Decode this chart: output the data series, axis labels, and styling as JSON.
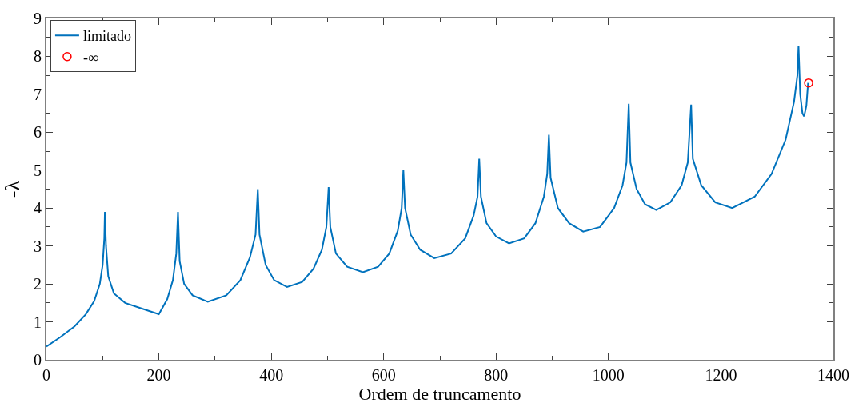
{
  "chart_data": {
    "type": "line",
    "xlabel": "Ordem de truncamento",
    "ylabel": "-λ",
    "xlim": [
      0,
      1400
    ],
    "xticks": [
      0,
      200,
      400,
      600,
      800,
      1000,
      1200,
      1400
    ],
    "ylim": [
      0,
      9
    ],
    "yticks": [
      0,
      1,
      2,
      3,
      4,
      5,
      6,
      7,
      8,
      9
    ],
    "legend": "top left",
    "series": [
      {
        "name": "limitado",
        "color": "#0072bd",
        "marker": "none",
        "line_style": "solid",
        "x": [
          0,
          25,
          50,
          70,
          85,
          95,
          100,
          103,
          104,
          106,
          110,
          120,
          140,
          170,
          200,
          215,
          225,
          231,
          234,
          237,
          245,
          260,
          287,
          320,
          345,
          362,
          372,
          376,
          379,
          390,
          405,
          428,
          455,
          475,
          490,
          498,
          502,
          505,
          515,
          535,
          563,
          590,
          610,
          625,
          632,
          635,
          638,
          648,
          665,
          690,
          720,
          745,
          760,
          767,
          770,
          773,
          783,
          800,
          823,
          850,
          870,
          885,
          891,
          894,
          897,
          910,
          930,
          955,
          985,
          1010,
          1025,
          1032,
          1036,
          1039,
          1050,
          1065,
          1085,
          1110,
          1130,
          1141,
          1147,
          1150,
          1165,
          1190,
          1220,
          1260,
          1290,
          1315,
          1330,
          1336,
          1338,
          1341,
          1345,
          1348,
          1352,
          1355
        ],
        "values": [
          0.35,
          0.6,
          0.88,
          1.2,
          1.55,
          2.0,
          2.5,
          3.2,
          3.9,
          3.0,
          2.2,
          1.75,
          1.5,
          1.35,
          1.2,
          1.6,
          2.1,
          2.8,
          3.9,
          2.6,
          2.0,
          1.7,
          1.53,
          1.7,
          2.1,
          2.7,
          3.3,
          4.5,
          3.3,
          2.5,
          2.1,
          1.92,
          2.05,
          2.4,
          2.9,
          3.5,
          4.55,
          3.5,
          2.8,
          2.45,
          2.31,
          2.45,
          2.8,
          3.4,
          4.0,
          5.0,
          4.0,
          3.3,
          2.9,
          2.68,
          2.8,
          3.2,
          3.8,
          4.3,
          5.3,
          4.3,
          3.6,
          3.25,
          3.07,
          3.2,
          3.6,
          4.3,
          4.9,
          5.93,
          4.8,
          4.0,
          3.6,
          3.38,
          3.5,
          4.0,
          4.6,
          5.2,
          6.75,
          5.2,
          4.5,
          4.1,
          3.95,
          4.15,
          4.6,
          5.2,
          6.73,
          5.3,
          4.6,
          4.15,
          4.0,
          4.3,
          4.9,
          5.8,
          6.8,
          7.5,
          8.27,
          7.0,
          6.5,
          6.42,
          6.7,
          7.3
        ]
      },
      {
        "name": "-∞",
        "type": "scatter",
        "color": "#ff0000",
        "marker": "circle",
        "x": [
          1356
        ],
        "values": [
          7.3
        ]
      }
    ]
  }
}
